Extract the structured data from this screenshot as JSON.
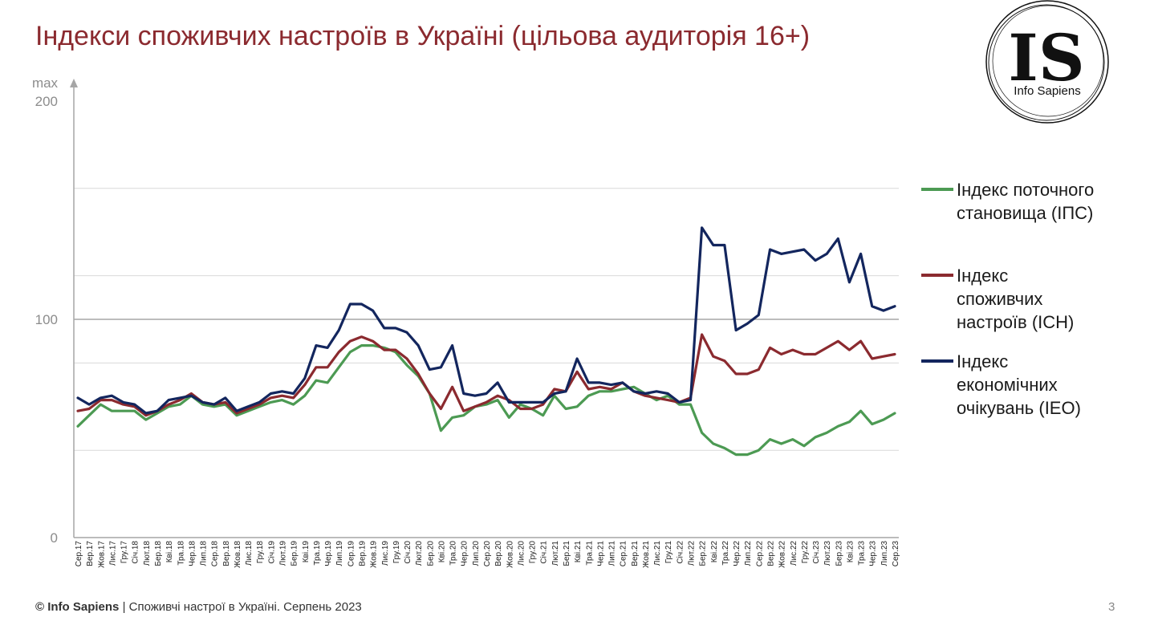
{
  "title": "Індекси споживчих настроїв в Україні (цільова аудиторія 16+)",
  "logo": {
    "letters": "IS",
    "name": "Info Sapiens"
  },
  "footer": {
    "brand": "© Info Sapiens",
    "text": " | Споживчі настрої в Україні. Серпень 2023"
  },
  "page_number": "3",
  "colors": {
    "ips": "#4c9a53",
    "icn": "#8b2a2f",
    "ieo": "#13265e",
    "title": "#8b2a2f",
    "grid": "#d9d9d9",
    "axis": "#a6a6a6"
  },
  "chart_data": {
    "type": "line",
    "yaxis": {
      "max_label": "max",
      "tick_labels": [
        "200",
        "100",
        "0"
      ],
      "ylim": [
        0,
        200
      ]
    },
    "grid": true,
    "legend_position": "right",
    "categories": [
      "Сер.17",
      "Вер.17",
      "Жов.17",
      "Лис.17",
      "Гру.17",
      "Січ.18",
      "Лют.18",
      "Бер.18",
      "Кві.18",
      "Тра.18",
      "Чер.18",
      "Лип.18",
      "Сер.18",
      "Вер.18",
      "Жов.18",
      "Лис.18",
      "Гру.18",
      "Січ.19",
      "Лют.19",
      "Бер.19",
      "Кві.19",
      "Тра.19",
      "Чер.19",
      "Лип.19",
      "Сер.19",
      "Вер.19",
      "Жов.19",
      "Лис.19",
      "Гру.19",
      "Січ.20",
      "Лют.20",
      "Бер.20",
      "Кві.20",
      "Тра.20",
      "Чер.20",
      "Лип.20",
      "Сер.20",
      "Вер.20",
      "Жов.20",
      "Лис.20",
      "Гру.20",
      "Січ.21",
      "Лют.21",
      "Бер.21",
      "Кві.21",
      "Тра.21",
      "Чер.21",
      "Лип.21",
      "Сер.21",
      "Вер.21",
      "Жов.21",
      "Лис.21",
      "Гру.21",
      "Січ.22",
      "Лют.22",
      "Бер.22",
      "Кві.22",
      "Тра.22",
      "Чер.22",
      "Лип.22",
      "Сер.22",
      "Вер.22",
      "Жов.22",
      "Лис.22",
      "Гру.22",
      "Січ.23",
      "Лют.23",
      "Бер.23",
      "Кві.23",
      "Тра.23",
      "Чер.23",
      "Лип.23",
      "Сер.23"
    ],
    "series": [
      {
        "key": "ips",
        "name": "Індекс поточного становища (ІПС)",
        "name_lines": [
          "Індекс поточного",
          "становища (ІПС)"
        ],
        "values": [
          51,
          56,
          61,
          58,
          58,
          58,
          54,
          57,
          60,
          61,
          65,
          61,
          60,
          61,
          56,
          58,
          60,
          62,
          63,
          61,
          65,
          72,
          71,
          78,
          85,
          88,
          88,
          87,
          85,
          79,
          74,
          66,
          49,
          55,
          56,
          60,
          61,
          63,
          55,
          61,
          59,
          56,
          65,
          59,
          60,
          65,
          67,
          67,
          68,
          69,
          66,
          63,
          65,
          61,
          61,
          48,
          43,
          41,
          38,
          38,
          40,
          45,
          43,
          45,
          42,
          46,
          48,
          51,
          53,
          58,
          52,
          54,
          57
        ]
      },
      {
        "key": "icn",
        "name": "Індекс споживчих настроїв (ІСН)",
        "name_lines": [
          "Індекс",
          "споживчих",
          "настроїв (ІСН)"
        ],
        "values": [
          58,
          59,
          63,
          63,
          61,
          60,
          56,
          58,
          61,
          63,
          66,
          62,
          61,
          62,
          57,
          59,
          61,
          64,
          65,
          64,
          70,
          78,
          78,
          85,
          90,
          92,
          90,
          86,
          86,
          82,
          75,
          66,
          59,
          69,
          58,
          60,
          62,
          65,
          63,
          59,
          59,
          61,
          68,
          67,
          76,
          68,
          69,
          68,
          71,
          67,
          65,
          64,
          63,
          62,
          64,
          93,
          83,
          81,
          75,
          75,
          77,
          87,
          84,
          86,
          84,
          84,
          87,
          90,
          86,
          90,
          82,
          83,
          84
        ]
      },
      {
        "key": "ieo",
        "name": "Індекс економічних очікувань (ІЕО)",
        "name_lines": [
          "Індекс",
          "економічних",
          "очікувань (ІЕО)"
        ],
        "values": [
          64,
          61,
          64,
          65,
          62,
          61,
          57,
          58,
          63,
          64,
          65,
          62,
          61,
          64,
          58,
          60,
          62,
          66,
          67,
          66,
          73,
          88,
          87,
          95,
          107,
          107,
          104,
          96,
          96,
          94,
          88,
          77,
          78,
          88,
          66,
          65,
          66,
          71,
          62,
          62,
          62,
          62,
          66,
          67,
          82,
          71,
          71,
          70,
          71,
          67,
          66,
          67,
          66,
          62,
          63,
          142,
          134,
          134,
          95,
          98,
          102,
          132,
          130,
          131,
          132,
          127,
          130,
          137,
          117,
          130,
          106,
          104,
          106
        ]
      }
    ]
  }
}
